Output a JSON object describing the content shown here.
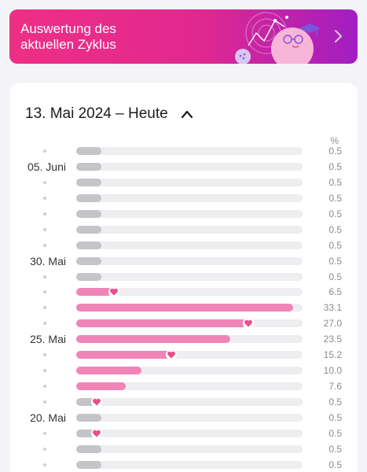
{
  "banner": {
    "title": "Auswertung des\naktuellen Zyklus",
    "gradient": [
      "#ee2f86",
      "#a11ec3"
    ]
  },
  "header": {
    "title": "13. Mai 2024 – Heute",
    "collapse_icon": "chevron-up-icon"
  },
  "percent_label": "%",
  "colors": {
    "low_bar": "#c4c4c9",
    "high_bar": "#f184b6",
    "heart": "#e8508f",
    "track": "#eeeef1"
  },
  "rows": [
    {
      "label": "",
      "value": "0.5",
      "level": 0.5,
      "heart": false
    },
    {
      "label": "05. Juni",
      "value": "0.5",
      "level": 0.5,
      "heart": false
    },
    {
      "label": "",
      "value": "0.5",
      "level": 0.5,
      "heart": false
    },
    {
      "label": "",
      "value": "0.5",
      "level": 0.5,
      "heart": false
    },
    {
      "label": "",
      "value": "0.5",
      "level": 0.5,
      "heart": false
    },
    {
      "label": "",
      "value": "0.5",
      "level": 0.5,
      "heart": false
    },
    {
      "label": "",
      "value": "0.5",
      "level": 0.5,
      "heart": false
    },
    {
      "label": "30. Mai",
      "value": "0.5",
      "level": 0.5,
      "heart": false
    },
    {
      "label": "",
      "value": "0.5",
      "level": 0.5,
      "heart": false
    },
    {
      "label": "",
      "value": "6.5",
      "level": 6.5,
      "heart": true
    },
    {
      "label": "",
      "value": "33.1",
      "level": 33.1,
      "heart": false
    },
    {
      "label": "",
      "value": "27.0",
      "level": 27.0,
      "heart": true
    },
    {
      "label": "25. Mai",
      "value": "23.5",
      "level": 23.5,
      "heart": false
    },
    {
      "label": "",
      "value": "15.2",
      "level": 15.2,
      "heart": true
    },
    {
      "label": "",
      "value": "10.0",
      "level": 10.0,
      "heart": false
    },
    {
      "label": "",
      "value": "7.6",
      "level": 7.6,
      "heart": false
    },
    {
      "label": "",
      "value": "0.5",
      "level": 0.5,
      "heart": true
    },
    {
      "label": "20. Mai",
      "value": "0.5",
      "level": 0.5,
      "heart": false
    },
    {
      "label": "",
      "value": "0.5",
      "level": 0.5,
      "heart": true
    },
    {
      "label": "",
      "value": "0.5",
      "level": 0.5,
      "heart": false
    },
    {
      "label": "",
      "value": "0.5",
      "level": 0.5,
      "heart": false
    }
  ]
}
